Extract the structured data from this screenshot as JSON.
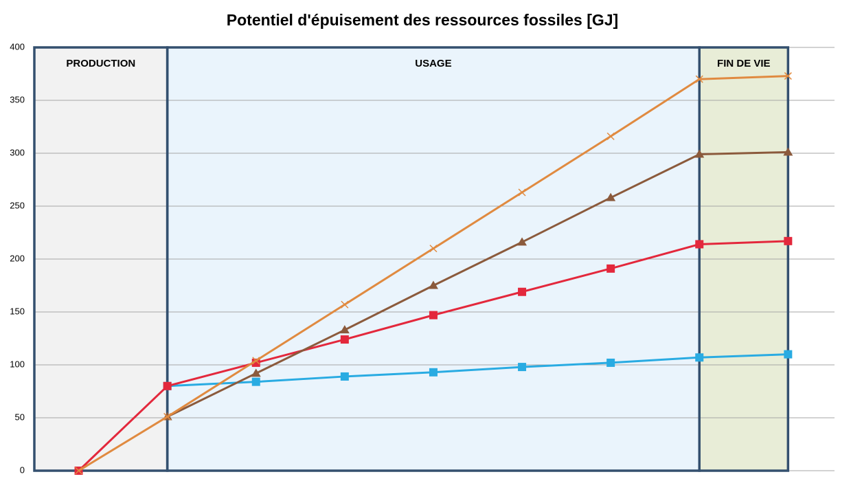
{
  "chart_data": {
    "type": "line",
    "title": "Potentiel d'épuisement des ressources fossiles [GJ]",
    "regions": [
      {
        "label": "PRODUCTION",
        "color": "#f2f2f2"
      },
      {
        "label": "USAGE",
        "color": "#eaf4fc"
      },
      {
        "label": "FIN DE VIE",
        "color": "#e8edd7"
      }
    ],
    "categories": [
      null,
      null,
      null,
      null,
      null,
      null,
      null,
      null,
      null
    ],
    "series": [
      {
        "color": "#29abe2",
        "marker": "square",
        "values": [
          null,
          80,
          84,
          89,
          93,
          98,
          102,
          107,
          110
        ]
      },
      {
        "color": "#e3283c",
        "marker": "square",
        "values": [
          0,
          80,
          102,
          124,
          147,
          169,
          191,
          214,
          217
        ]
      },
      {
        "color": "#8b5a3c",
        "marker": "triangle",
        "values": [
          null,
          51,
          92,
          133,
          175,
          216,
          258,
          299,
          301
        ]
      },
      {
        "color": "#e08a40",
        "marker": "x",
        "values": [
          0,
          51,
          104,
          157,
          210,
          263,
          316,
          370,
          373
        ]
      }
    ],
    "ylim": [
      0,
      400
    ],
    "yticks": [
      0,
      50,
      100,
      150,
      200,
      250,
      300,
      350,
      400
    ],
    "grid": true
  }
}
